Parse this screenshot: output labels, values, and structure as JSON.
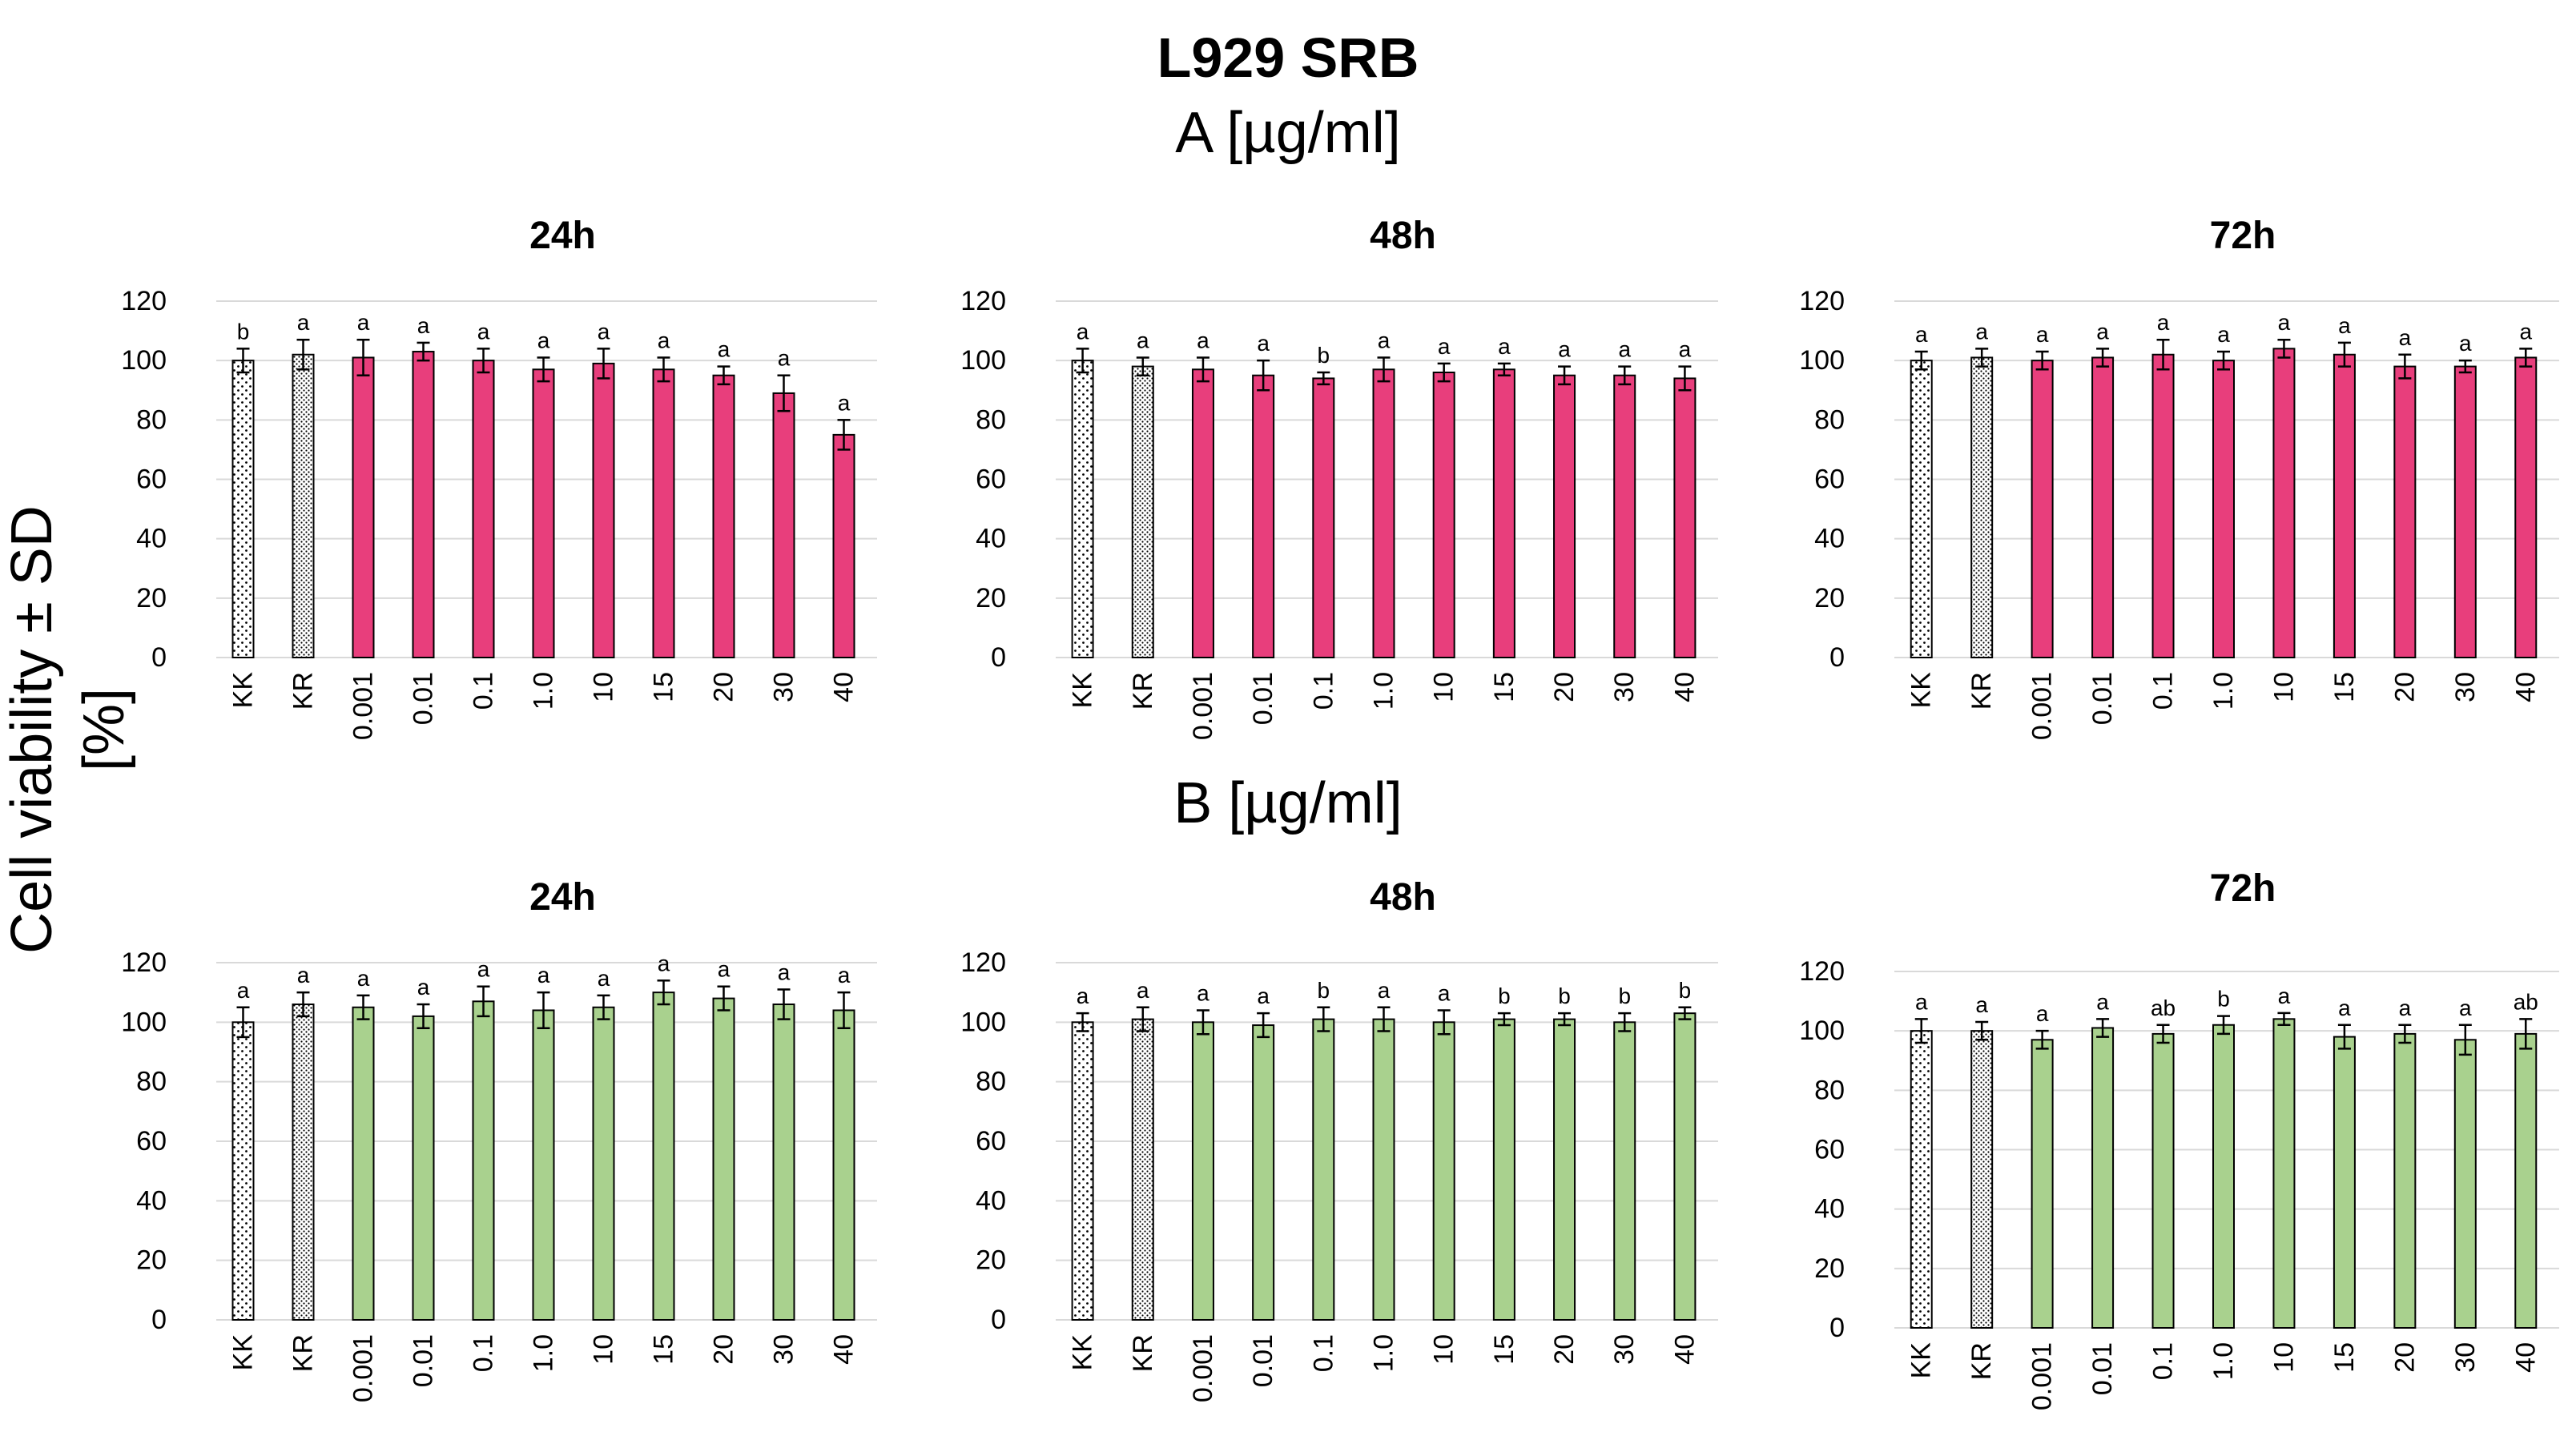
{
  "page_title": "L929 SRB",
  "y_axis_label": "Cell viability ± SD [%]",
  "compound_labels": {
    "a": "A [µg/ml]",
    "b": "B [µg/ml]"
  },
  "colors": {
    "compound_a": "#E83E7C",
    "compound_b": "#A9D18E",
    "control": "#FFFFFF",
    "grid": "#D9D9D9",
    "axis": "#000000"
  },
  "chart_data": [
    {
      "type": "bar",
      "compound": "A",
      "title": "24h",
      "ylim": [
        0,
        120
      ],
      "yticks": [
        0,
        20,
        40,
        60,
        80,
        100,
        120
      ],
      "categories": [
        "KK",
        "KR",
        "0.001",
        "0.01",
        "0.1",
        "1.0",
        "10",
        "15",
        "20",
        "30",
        "40"
      ],
      "values": [
        100,
        102,
        101,
        103,
        100,
        97,
        99,
        97,
        95,
        89,
        75
      ],
      "errors": [
        4,
        5,
        6,
        3,
        4,
        4,
        5,
        4,
        3,
        6,
        5
      ],
      "letters": [
        "b",
        "a",
        "a",
        "a",
        "a",
        "a",
        "a",
        "a",
        "a",
        "a",
        "a"
      ]
    },
    {
      "type": "bar",
      "compound": "A",
      "title": "48h",
      "ylim": [
        0,
        120
      ],
      "yticks": [
        0,
        20,
        40,
        60,
        80,
        100,
        120
      ],
      "categories": [
        "KK",
        "KR",
        "0.001",
        "0.01",
        "0.1",
        "1.0",
        "10",
        "15",
        "20",
        "30",
        "40"
      ],
      "values": [
        100,
        98,
        97,
        95,
        94,
        97,
        96,
        97,
        95,
        95,
        94
      ],
      "errors": [
        4,
        3,
        4,
        5,
        2,
        4,
        3,
        2,
        3,
        3,
        4
      ],
      "letters": [
        "a",
        "a",
        "a",
        "a",
        "b",
        "a",
        "a",
        "a",
        "a",
        "a",
        "a"
      ]
    },
    {
      "type": "bar",
      "compound": "A",
      "title": "72h",
      "ylim": [
        0,
        120
      ],
      "yticks": [
        0,
        20,
        40,
        60,
        80,
        100,
        120
      ],
      "categories": [
        "KK",
        "KR",
        "0.001",
        "0.01",
        "0.1",
        "1.0",
        "10",
        "15",
        "20",
        "30",
        "40"
      ],
      "values": [
        100,
        101,
        100,
        101,
        102,
        100,
        104,
        102,
        98,
        98,
        101
      ],
      "errors": [
        3,
        3,
        3,
        3,
        5,
        3,
        3,
        4,
        4,
        2,
        3
      ],
      "letters": [
        "a",
        "a",
        "a",
        "a",
        "a",
        "a",
        "a",
        "a",
        "a",
        "a",
        "a"
      ]
    },
    {
      "type": "bar",
      "compound": "B",
      "title": "24h",
      "ylim": [
        0,
        120
      ],
      "yticks": [
        0,
        20,
        40,
        60,
        80,
        100,
        120
      ],
      "categories": [
        "KK",
        "KR",
        "0.001",
        "0.01",
        "0.1",
        "1.0",
        "10",
        "15",
        "20",
        "30",
        "40"
      ],
      "values": [
        100,
        106,
        105,
        102,
        107,
        104,
        105,
        110,
        108,
        106,
        104
      ],
      "errors": [
        5,
        4,
        4,
        4,
        5,
        6,
        4,
        4,
        4,
        5,
        6
      ],
      "letters": [
        "a",
        "a",
        "a",
        "a",
        "a",
        "a",
        "a",
        "a",
        "a",
        "a",
        "a"
      ]
    },
    {
      "type": "bar",
      "compound": "B",
      "title": "48h",
      "ylim": [
        0,
        120
      ],
      "yticks": [
        0,
        20,
        40,
        60,
        80,
        100,
        120
      ],
      "categories": [
        "KK",
        "KR",
        "0.001",
        "0.01",
        "0.1",
        "1.0",
        "10",
        "15",
        "20",
        "30",
        "40"
      ],
      "values": [
        100,
        101,
        100,
        99,
        101,
        101,
        100,
        101,
        101,
        100,
        103
      ],
      "errors": [
        3,
        4,
        4,
        4,
        4,
        4,
        4,
        2,
        2,
        3,
        2
      ],
      "letters": [
        "a",
        "a",
        "a",
        "a",
        "b",
        "a",
        "a",
        "b",
        "b",
        "b",
        "b"
      ]
    },
    {
      "type": "bar",
      "compound": "B",
      "title": "72h",
      "ylim": [
        0,
        120
      ],
      "yticks": [
        0,
        20,
        40,
        60,
        80,
        100,
        120
      ],
      "categories": [
        "KK",
        "KR",
        "0.001",
        "0.01",
        "0.1",
        "1.0",
        "10",
        "15",
        "20",
        "30",
        "40"
      ],
      "values": [
        100,
        100,
        97,
        101,
        99,
        102,
        104,
        98,
        99,
        97,
        99
      ],
      "errors": [
        4,
        3,
        3,
        3,
        3,
        3,
        2,
        4,
        3,
        5,
        5
      ],
      "letters": [
        "a",
        "a",
        "a",
        "a",
        "ab",
        "b",
        "a",
        "a",
        "a",
        "a",
        "ab"
      ]
    }
  ]
}
